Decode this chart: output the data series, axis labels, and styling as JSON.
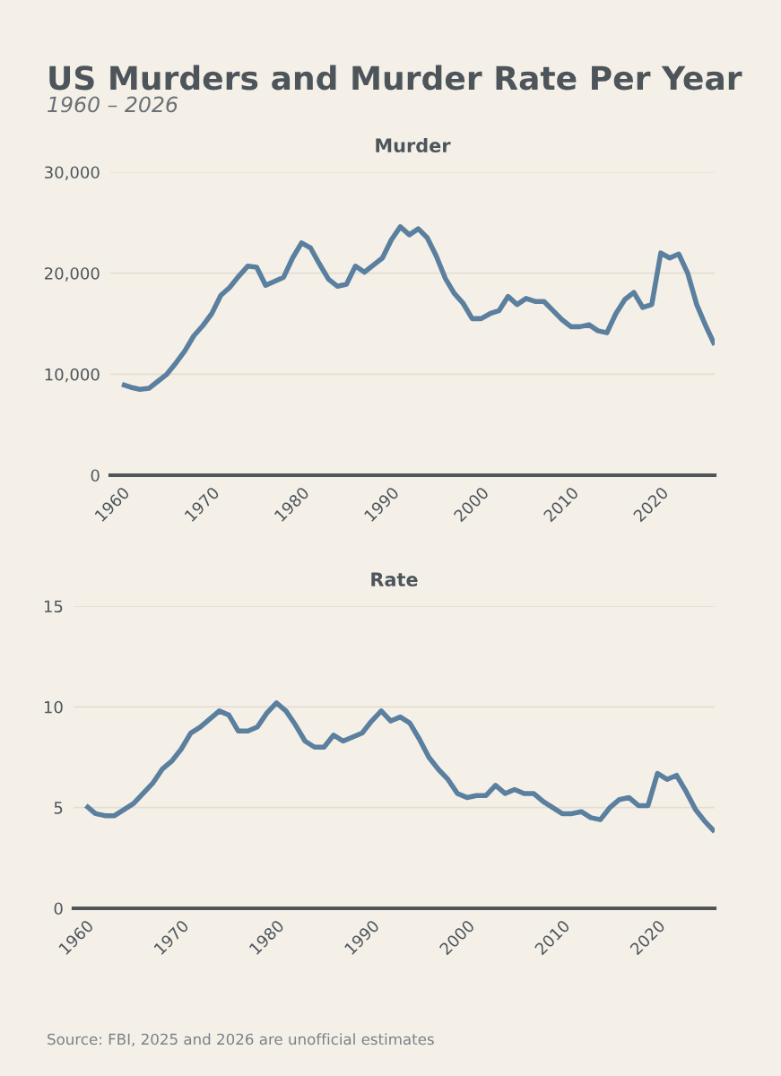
{
  "chart_data": [
    {
      "type": "line",
      "title": "Murder",
      "annotations": [
        "US Murders and Murder Rate Per Year",
        "1960 – 2026"
      ],
      "x": [
        1960,
        1961,
        1962,
        1963,
        1964,
        1965,
        1966,
        1967,
        1968,
        1969,
        1970,
        1971,
        1972,
        1973,
        1974,
        1975,
        1976,
        1977,
        1978,
        1979,
        1980,
        1981,
        1982,
        1983,
        1984,
        1985,
        1986,
        1987,
        1988,
        1989,
        1990,
        1991,
        1992,
        1993,
        1994,
        1995,
        1996,
        1997,
        1998,
        1999,
        2000,
        2001,
        2002,
        2003,
        2004,
        2005,
        2006,
        2007,
        2008,
        2009,
        2010,
        2011,
        2012,
        2013,
        2014,
        2015,
        2016,
        2017,
        2018,
        2019,
        2020,
        2021,
        2022,
        2023,
        2024,
        2025,
        2026
      ],
      "series": [
        {
          "color": "#5b7f9e",
          "values": [
            9000,
            8700,
            8500,
            8600,
            9300,
            10000,
            11100,
            12300,
            13800,
            14800,
            16000,
            17800,
            18600,
            19700,
            20700,
            20600,
            18800,
            19200,
            19600,
            21500,
            23000,
            22500,
            20900,
            19400,
            18700,
            18900,
            20700,
            20100,
            20800,
            21500,
            23300,
            24600,
            23800,
            24400,
            23500,
            21700,
            19500,
            18000,
            17000,
            15500,
            15500,
            16000,
            16300,
            17700,
            16900,
            17500,
            17200,
            17200,
            16300,
            15400,
            14700,
            14700,
            14900,
            14300,
            14100,
            16000,
            17400,
            18100,
            16600,
            16900,
            22000,
            21500,
            21900,
            20000,
            16900,
            14800,
            12900
          ]
        }
      ],
      "xlim": [
        1958.7,
        2026
      ],
      "xticks": [
        1960,
        1970,
        1980,
        1990,
        2000,
        2010,
        2020
      ],
      "ylim": [
        0,
        30000
      ],
      "yticks": [
        {
          "value": 0,
          "label": "0"
        },
        {
          "value": 10000,
          "label": "10,000"
        },
        {
          "value": 20000,
          "label": "20,000"
        },
        {
          "value": 30000,
          "label": "30,000"
        }
      ],
      "grid": "y",
      "marker": "none",
      "line_style": "solid"
    },
    {
      "type": "line",
      "title": "Rate",
      "annotations": [
        "Source: FBI, 2025 and 2026 are unofficial estimates"
      ],
      "x": [
        1960,
        1961,
        1962,
        1963,
        1964,
        1965,
        1966,
        1967,
        1968,
        1969,
        1970,
        1971,
        1972,
        1973,
        1974,
        1975,
        1976,
        1977,
        1978,
        1979,
        1980,
        1981,
        1982,
        1983,
        1984,
        1985,
        1986,
        1987,
        1988,
        1989,
        1990,
        1991,
        1992,
        1993,
        1994,
        1995,
        1996,
        1997,
        1998,
        1999,
        2000,
        2001,
        2002,
        2003,
        2004,
        2005,
        2006,
        2007,
        2008,
        2009,
        2010,
        2011,
        2012,
        2013,
        2014,
        2015,
        2016,
        2017,
        2018,
        2019,
        2020,
        2021,
        2022,
        2023,
        2024,
        2025,
        2026
      ],
      "series": [
        {
          "color": "#5b7f9e",
          "values": [
            5.1,
            4.7,
            4.6,
            4.6,
            4.9,
            5.2,
            5.7,
            6.2,
            6.9,
            7.3,
            7.9,
            8.7,
            9.0,
            9.4,
            9.8,
            9.6,
            8.8,
            8.8,
            9.0,
            9.7,
            10.2,
            9.8,
            9.1,
            8.3,
            8.0,
            8.0,
            8.6,
            8.3,
            8.5,
            8.7,
            9.3,
            9.8,
            9.3,
            9.5,
            9.2,
            8.4,
            7.5,
            6.9,
            6.4,
            5.7,
            5.5,
            5.6,
            5.6,
            6.1,
            5.7,
            5.9,
            5.7,
            5.7,
            5.3,
            5.0,
            4.7,
            4.7,
            4.8,
            4.5,
            4.4,
            5.0,
            5.4,
            5.5,
            5.1,
            5.1,
            6.7,
            6.4,
            6.6,
            5.8,
            4.9,
            4.3,
            3.8
          ]
        }
      ],
      "xlim": [
        1958.7,
        2026
      ],
      "xticks": [
        1960,
        1970,
        1980,
        1990,
        2000,
        2010,
        2020
      ],
      "ylim": [
        0,
        15
      ],
      "yticks": [
        0,
        5,
        10,
        15
      ],
      "grid": "y",
      "marker": "none",
      "line_style": "solid"
    }
  ]
}
